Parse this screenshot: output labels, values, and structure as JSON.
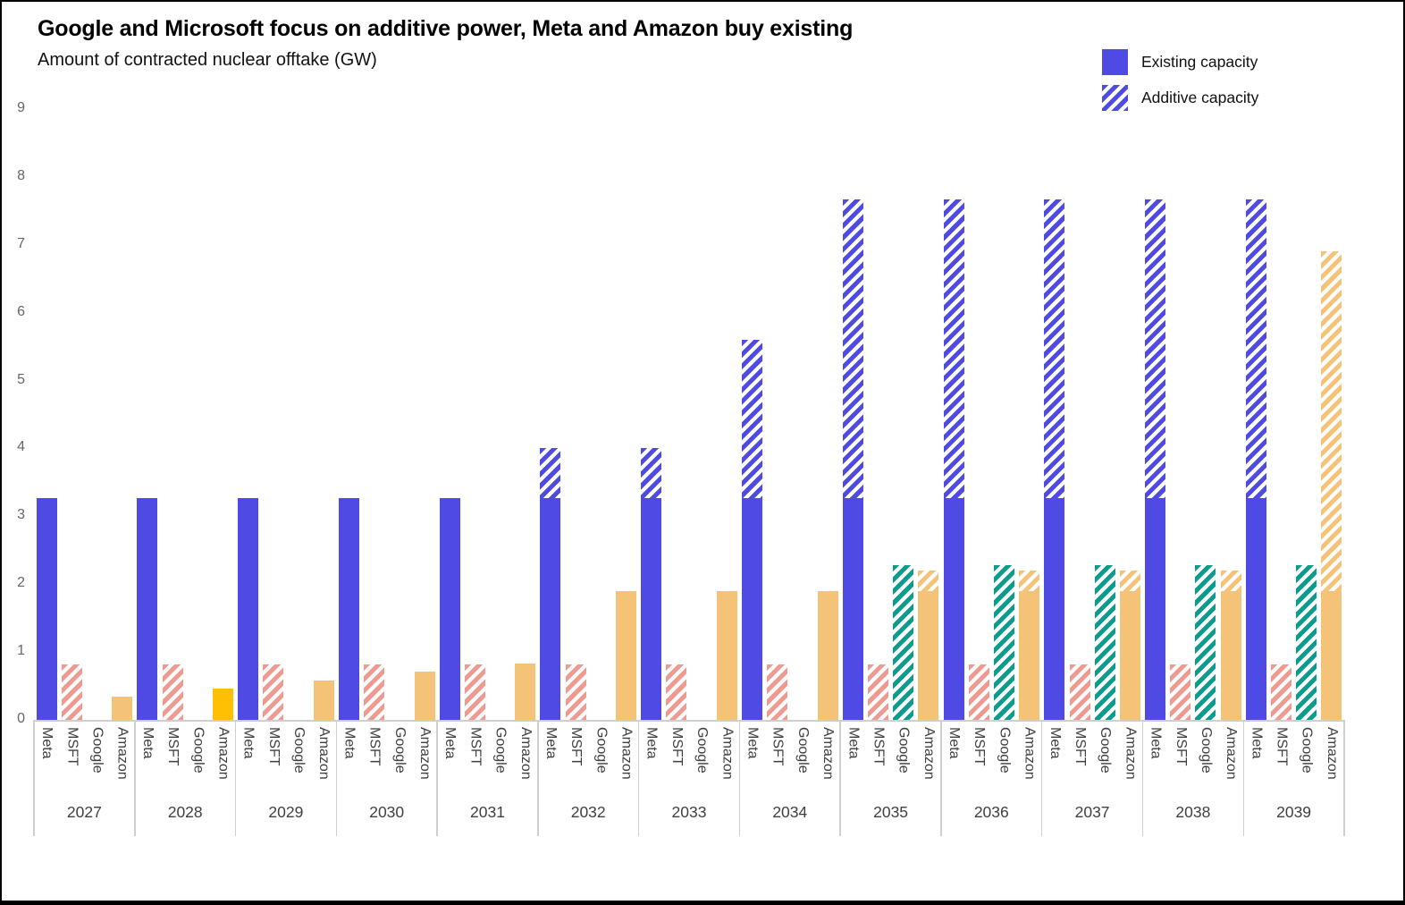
{
  "header": {
    "title": "Google and Microsoft focus on additive power, Meta and Amazon buy existing",
    "subtitle": "Amount of contracted nuclear offtake (GW)"
  },
  "colors": {
    "background": "#ffffff",
    "frame": "#000000",
    "axis": "#cfcfcf",
    "tick_label": "#666666",
    "category_label": "#3f3f3f"
  },
  "chart_data": {
    "type": "bar",
    "title": "Google and Microsoft focus on additive power, Meta and Amazon buy existing",
    "subtitle": "Amount of contracted nuclear offtake (GW)",
    "ylabel": "GW",
    "ylim": [
      0,
      9
    ],
    "yticks": [
      0,
      1,
      2,
      3,
      4,
      5,
      6,
      7,
      8,
      9
    ],
    "grid": "off",
    "legend_position": "top-right",
    "legend": [
      {
        "label": "Existing capacity",
        "pattern": "solid",
        "color": "#4E4AE3"
      },
      {
        "label": "Additive capacity",
        "pattern": "hatched",
        "color": "#4E4AE3"
      }
    ],
    "categories": [
      "2027",
      "2028",
      "2029",
      "2030",
      "2031",
      "2032",
      "2033",
      "2034",
      "2035",
      "2036",
      "2037",
      "2038",
      "2039"
    ],
    "subcategories": [
      "Meta",
      "MSFT",
      "Google",
      "Amazon"
    ],
    "series": [
      {
        "name": "Meta",
        "color": "#4E4AE3",
        "existing": [
          3.27,
          3.27,
          3.27,
          3.27,
          3.27,
          3.27,
          3.27,
          3.27,
          3.27,
          3.27,
          3.27,
          3.27,
          3.27
        ],
        "additive": [
          0,
          0,
          0,
          0,
          0,
          0.73,
          0.73,
          2.33,
          4.4,
          4.4,
          4.4,
          4.4,
          4.4
        ]
      },
      {
        "name": "MSFT",
        "color": "#EF9A91",
        "existing": [
          0,
          0,
          0,
          0,
          0,
          0,
          0,
          0,
          0,
          0,
          0,
          0,
          0
        ],
        "additive": [
          0.82,
          0.82,
          0.82,
          0.82,
          0.82,
          0.82,
          0.82,
          0.82,
          0.82,
          0.82,
          0.82,
          0.82,
          0.82
        ]
      },
      {
        "name": "Google",
        "color": "#0B9C8D",
        "existing": [
          0,
          0,
          0,
          0,
          0,
          0,
          0,
          0,
          0,
          0,
          0,
          0,
          0
        ],
        "additive": [
          0,
          0,
          0,
          0,
          0,
          0,
          0,
          0,
          2.28,
          2.28,
          2.28,
          2.28,
          2.28
        ]
      },
      {
        "name": "Amazon",
        "color": "#F5C377",
        "existing": [
          0.34,
          0.46,
          0.58,
          0.71,
          0.83,
          1.9,
          1.9,
          1.9,
          1.9,
          1.9,
          1.9,
          1.9,
          1.9
        ],
        "additive": [
          0,
          0,
          0,
          0,
          0,
          0,
          0,
          0,
          0.3,
          0.3,
          0.3,
          0.3,
          5.0
        ]
      }
    ],
    "highlight": {
      "series": "Amazon",
      "category": "2028",
      "color": "#FFC003"
    }
  }
}
